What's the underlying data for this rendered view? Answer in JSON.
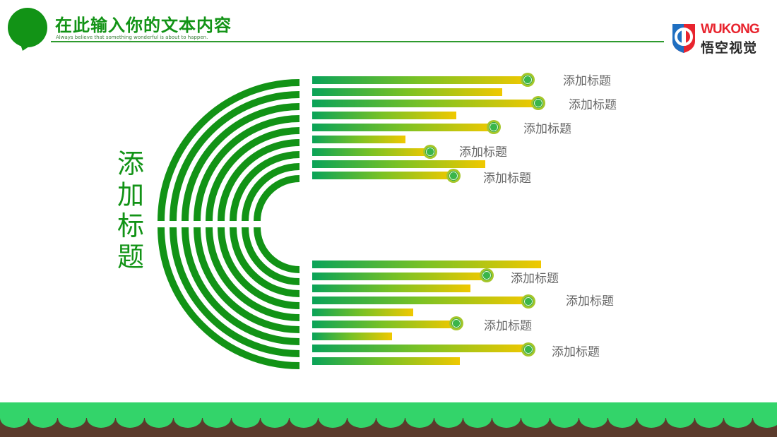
{
  "header": {
    "title": "在此输入你的文本内容",
    "subtitle": "Always believe that something wonderful is about to happen."
  },
  "logo": {
    "brand_latin": "WUKONG",
    "brand_cn": "悟空视觉"
  },
  "diagram": {
    "center_title": [
      "添",
      "加",
      "标",
      "题"
    ],
    "top_labels": [
      "添加标题",
      "添加标题",
      "添加标题",
      "添加标题",
      "添加标题"
    ],
    "bottom_labels": [
      "添加标题",
      "添加标题",
      "添加标题",
      "添加标题"
    ]
  },
  "colors": {
    "primary_green": "#129316",
    "bar_start": "#0aa358",
    "bar_end": "#f0c800",
    "ground_green": "#33d46a",
    "ground_soil": "#5b3b2c"
  }
}
